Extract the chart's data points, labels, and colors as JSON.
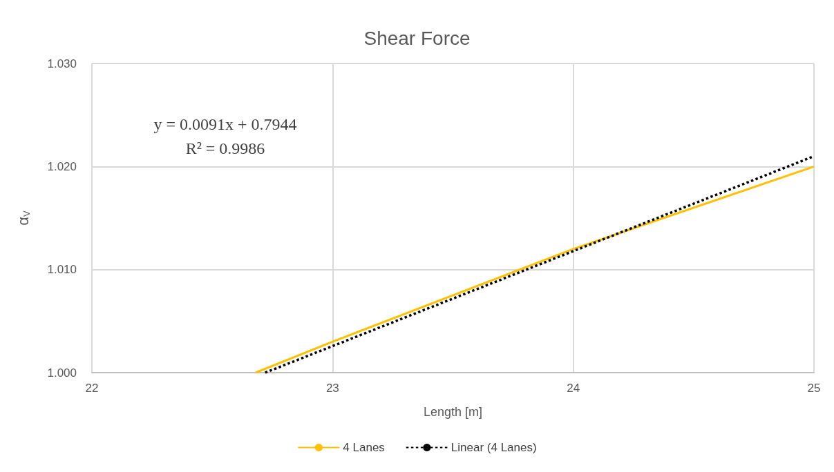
{
  "chart_data": {
    "type": "line",
    "title": "Shear Force",
    "xlabel": "Length [m]",
    "ylabel": "α$_{V}$",
    "annotations": [
      "y = 0.0091x + 0.7944",
      "R² = 0.9986"
    ],
    "series": [
      {
        "name": "4 Lanes",
        "color": "#ffc000",
        "x": [
          22.68,
          23,
          24,
          25
        ],
        "values": [
          1.0,
          1.003,
          1.012,
          1.02
        ],
        "line_style": "solid"
      },
      {
        "name": "Linear (4 Lanes)",
        "color": "#000000",
        "x": [
          22.72,
          25
        ],
        "values": [
          1.0,
          1.021
        ],
        "line_style": "dotted"
      }
    ],
    "xlim": [
      22,
      25
    ],
    "xticks": [
      22,
      23,
      24,
      25
    ],
    "ylim": [
      1.0,
      1.03
    ],
    "yticks": [
      {
        "value": 1.0,
        "label": "1.000"
      },
      {
        "value": 1.01,
        "label": "1.010"
      },
      {
        "value": 1.02,
        "label": "1.020"
      },
      {
        "value": 1.03,
        "label": "1.030"
      }
    ],
    "grid": true,
    "legend": "bottom",
    "marker": "none"
  }
}
